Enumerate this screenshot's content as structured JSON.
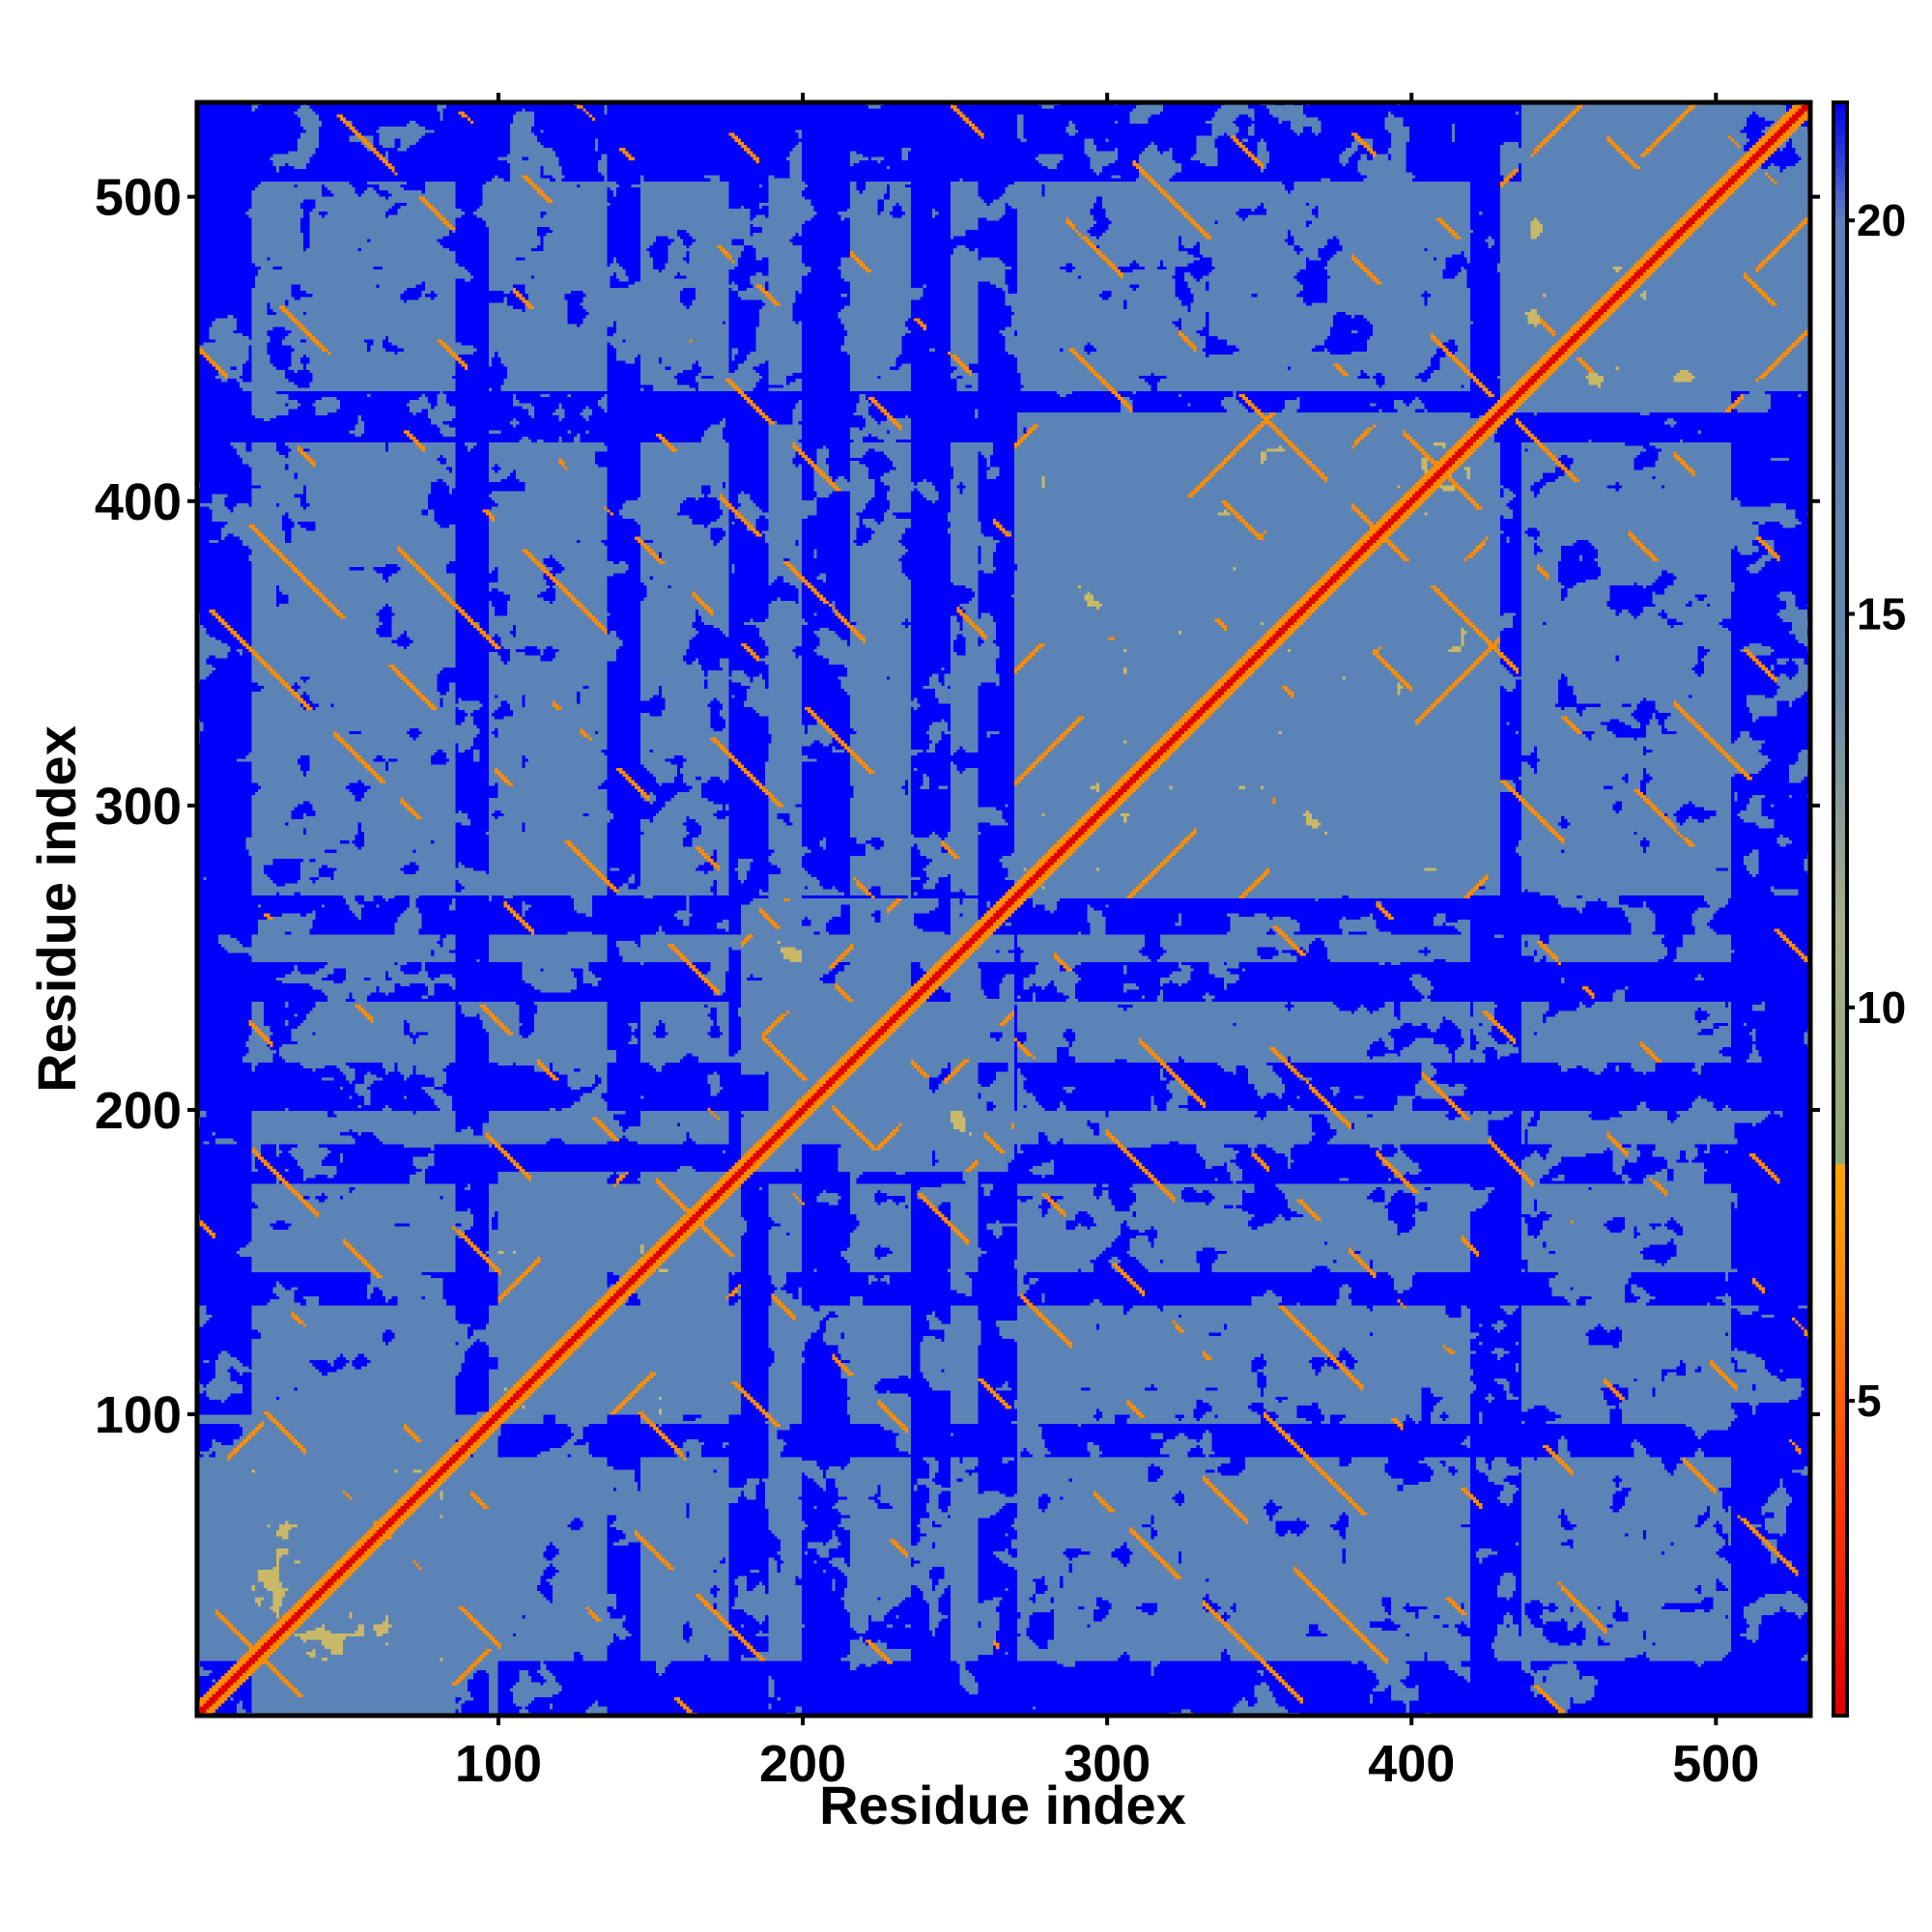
{
  "chart_data": {
    "type": "heatmap",
    "title": "",
    "xlabel": "Residue index",
    "ylabel": "Residue index",
    "xlim": [
      1,
      531
    ],
    "ylim": [
      1,
      531
    ],
    "x_ticks": [
      100,
      200,
      300,
      400,
      500
    ],
    "y_ticks": [
      100,
      200,
      300,
      400,
      500
    ],
    "x_tick_labels": [
      "100",
      "200",
      "300",
      "400",
      "500"
    ],
    "y_tick_labels": [
      "100",
      "200",
      "300",
      "400",
      "500"
    ],
    "n_residues": 531,
    "grid": false,
    "colorbar": {
      "position": "right",
      "range": [
        1,
        21.5
      ],
      "ticks": [
        5,
        10,
        15,
        20
      ],
      "tick_labels": [
        "5",
        "10",
        "15",
        "20"
      ],
      "stops": [
        {
          "value": 1,
          "color": "#e00000"
        },
        {
          "value": 4,
          "color": "#ff4000"
        },
        {
          "value": 6.5,
          "color": "#ff8c00"
        },
        {
          "value": 8,
          "color": "#ffa500"
        },
        {
          "value": 8.01,
          "color": "#8fa878"
        },
        {
          "value": 11,
          "color": "#a8b088"
        },
        {
          "value": 14,
          "color": "#6a8aa8"
        },
        {
          "value": 18,
          "color": "#5b82b4"
        },
        {
          "value": 20,
          "color": "#5e80bd"
        },
        {
          "value": 21.5,
          "color": "#0000f0"
        }
      ]
    },
    "colors": {
      "far": "#0000ff",
      "mid": "#5b83b5",
      "near": "#c8b868",
      "contact": "#ff8c00",
      "diagonal": "#e00000"
    },
    "domains": [
      {
        "start": 1,
        "end": 100
      },
      {
        "start": 100,
        "end": 180
      },
      {
        "start": 180,
        "end": 270
      },
      {
        "start": 270,
        "end": 430
      },
      {
        "start": 430,
        "end": 531
      }
    ]
  }
}
